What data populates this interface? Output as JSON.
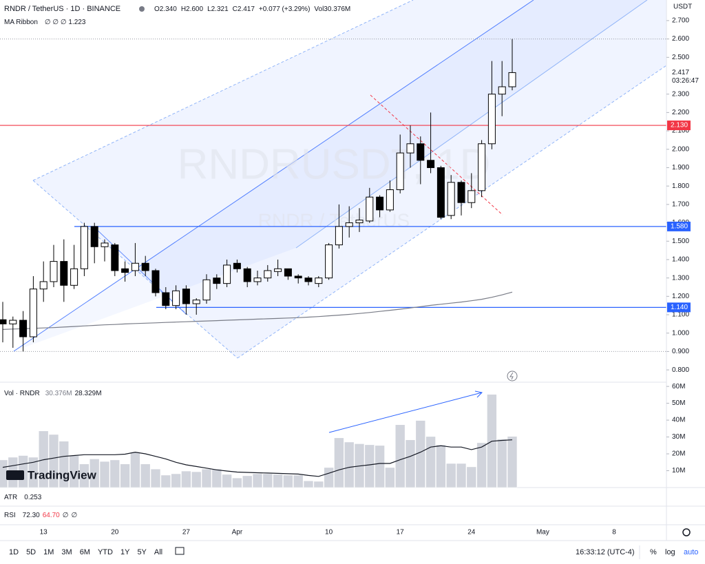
{
  "header": {
    "symbol": "RNDR / TetherUS · 1D · BINANCE",
    "ohlc": [
      "O2.340",
      "H2.600",
      "L2.321",
      "C2.417",
      "+0.077 (+3.29%)",
      "Vol30.376M"
    ],
    "ma_legend": "∅ ∅ ∅ 1.223"
  },
  "watermark": {
    "main": "RNDRUSDT, 1D",
    "sub": "RNDR / TetherUS"
  },
  "currency": "USDT",
  "logo": "TradingView",
  "indicators": {
    "atr": {
      "name": "ATR",
      "value": "0.253"
    },
    "rsi": {
      "name": "RSI",
      "values": [
        "72.30",
        "64.70",
        "∅",
        "∅"
      ]
    }
  },
  "toolbar": {
    "ranges": [
      "1D",
      "5D",
      "1M",
      "3M",
      "6M",
      "YTD",
      "1Y",
      "5Y",
      "All"
    ],
    "clock": "16:33:12 (UTC-4)",
    "options": [
      "%",
      "log",
      "auto"
    ]
  },
  "chart_data": {
    "type": "candlestick",
    "categories": [
      null,
      null,
      null,
      null,
      "13",
      null,
      null,
      null,
      null,
      null,
      null,
      "20",
      null,
      null,
      null,
      null,
      null,
      null,
      "27",
      null,
      null,
      null,
      null,
      "Apr",
      null,
      null,
      null,
      null,
      null,
      null,
      null,
      null,
      "10",
      null,
      null,
      null,
      null,
      null,
      null,
      "17",
      null,
      null,
      null,
      null,
      null,
      null,
      "24",
      null,
      null,
      null,
      null,
      null,
      null,
      "May",
      null,
      null,
      null,
      null,
      null,
      null,
      "8"
    ],
    "open": [
      1.073,
      1.05,
      1.07,
      0.98,
      1.24,
      1.28,
      1.39,
      1.26,
      1.35,
      1.58,
      1.47,
      1.48,
      1.35,
      1.34,
      1.38,
      1.34,
      1.22,
      1.15,
      1.24,
      1.16,
      1.18,
      1.3,
      1.27,
      1.38,
      1.35,
      1.28,
      1.3,
      1.335,
      1.35,
      1.31,
      1.3,
      1.27,
      1.3,
      1.48,
      1.58,
      1.6,
      1.61,
      1.74,
      1.67,
      1.78,
      1.98,
      2.03,
      1.94,
      1.9,
      1.64,
      1.82,
      1.71,
      1.775,
      2.03,
      2.3,
      2.34,
      null,
      null,
      null,
      null,
      null,
      null,
      null,
      null,
      null,
      null
    ],
    "high": [
      1.17,
      1.09,
      1.12,
      1.31,
      1.39,
      1.48,
      1.51,
      1.48,
      1.6,
      1.6,
      1.51,
      1.49,
      1.39,
      1.49,
      1.42,
      1.35,
      1.25,
      1.26,
      1.26,
      1.19,
      1.32,
      1.32,
      1.4,
      1.4,
      1.36,
      1.34,
      1.37,
      1.4,
      1.35,
      1.32,
      1.31,
      1.31,
      1.49,
      1.7,
      1.69,
      1.68,
      1.79,
      1.75,
      1.83,
      2.08,
      2.13,
      2.07,
      2.2,
      1.91,
      1.86,
      1.83,
      1.87,
      2.05,
      2.48,
      2.48,
      2.6,
      null,
      null,
      null,
      null,
      null,
      null,
      null,
      null,
      null,
      null
    ],
    "low": [
      0.95,
      0.92,
      0.9,
      0.95,
      1.17,
      1.25,
      1.17,
      1.24,
      1.31,
      1.38,
      1.39,
      1.31,
      1.28,
      1.31,
      1.31,
      1.2,
      1.13,
      1.13,
      1.1,
      1.1,
      1.16,
      1.24,
      1.25,
      1.33,
      1.25,
      1.26,
      1.28,
      1.31,
      1.29,
      1.27,
      1.26,
      1.25,
      1.29,
      1.46,
      1.52,
      1.55,
      1.6,
      1.63,
      1.66,
      1.76,
      1.9,
      1.81,
      1.87,
      1.62,
      1.62,
      1.64,
      1.68,
      1.74,
      2.0,
      2.18,
      2.321,
      null,
      null,
      null,
      null,
      null,
      null,
      null,
      null,
      null,
      null
    ],
    "close": [
      1.05,
      1.07,
      0.98,
      1.24,
      1.28,
      1.39,
      1.26,
      1.35,
      1.58,
      1.47,
      1.49,
      1.34,
      1.33,
      1.38,
      1.34,
      1.22,
      1.15,
      1.23,
      1.16,
      1.18,
      1.29,
      1.27,
      1.37,
      1.35,
      1.28,
      1.3,
      1.34,
      1.35,
      1.31,
      1.3,
      1.28,
      1.3,
      1.48,
      1.58,
      1.6,
      1.615,
      1.74,
      1.67,
      1.78,
      1.98,
      2.03,
      1.94,
      1.9,
      1.63,
      1.82,
      1.71,
      1.775,
      2.03,
      2.3,
      2.34,
      2.417,
      null,
      null,
      null,
      null,
      null,
      null,
      null,
      null,
      null,
      null
    ],
    "up_color": "#ffffff",
    "down_color": "#000000",
    "wick_color": "#000000",
    "ma": {
      "name": "MA Ribbon",
      "color": "#787b86",
      "values": [
        1.02,
        1.022,
        1.024,
        1.026,
        1.028,
        1.03,
        1.033,
        1.036,
        1.039,
        1.042,
        1.045,
        1.047,
        1.05,
        1.052,
        1.054,
        1.056,
        1.058,
        1.06,
        1.062,
        1.064,
        1.066,
        1.068,
        1.07,
        1.072,
        1.074,
        1.076,
        1.078,
        1.08,
        1.082,
        1.084,
        1.087,
        1.09,
        1.094,
        1.098,
        1.102,
        1.107,
        1.112,
        1.118,
        1.124,
        1.13,
        1.137,
        1.144,
        1.151,
        1.157,
        1.163,
        1.169,
        1.176,
        1.184,
        1.195,
        1.208,
        1.223,
        null,
        null,
        null,
        null,
        null,
        null,
        null,
        null,
        null,
        null
      ]
    },
    "ylim": [
      0.733,
      2.812
    ],
    "yticks": [
      {
        "value": 2.7,
        "label": "2.700"
      },
      {
        "value": 2.6,
        "label": "2.600"
      },
      {
        "value": 2.5,
        "label": "2.500"
      },
      {
        "value": 2.3,
        "label": "2.300"
      },
      {
        "value": 2.2,
        "label": "2.200"
      },
      {
        "value": 2.1,
        "label": "2.100"
      },
      {
        "value": 2.0,
        "label": "2.000"
      },
      {
        "value": 1.9,
        "label": "1.900"
      },
      {
        "value": 1.8,
        "label": "1.800"
      },
      {
        "value": 1.7,
        "label": "1.700"
      },
      {
        "value": 1.6,
        "label": "1.600"
      },
      {
        "value": 1.5,
        "label": "1.500"
      },
      {
        "value": 1.4,
        "label": "1.400"
      },
      {
        "value": 1.3,
        "label": "1.300"
      },
      {
        "value": 1.2,
        "label": "1.200"
      },
      {
        "value": 1.1,
        "label": "1.100"
      },
      {
        "value": 1.0,
        "label": "1.000"
      },
      {
        "value": 0.9,
        "label": "0.900"
      },
      {
        "value": 0.8,
        "label": "0.800"
      }
    ],
    "levels": [
      {
        "value": 2.13,
        "label": "2.130",
        "color": "#f23645"
      },
      {
        "value": 1.58,
        "label": "1.580",
        "color": "#2962ff"
      },
      {
        "value": 1.14,
        "label": "1.140",
        "color": "#2962ff"
      }
    ],
    "range_lines": [
      2.6,
      0.9
    ],
    "last_price": {
      "value": 2.417,
      "label": "2.417",
      "countdown": "03:26:47"
    },
    "volume": {
      "name": "Vol · RNDR",
      "color": "#d1d4dc",
      "value_label": "30.376M",
      "ma_label": "28.329M",
      "ma_color": "#131722",
      "values": [
        16.4,
        18,
        19,
        18,
        33.6,
        31.5,
        27.5,
        19,
        14,
        17,
        15.5,
        16.4,
        14,
        21,
        14,
        11,
        7.4,
        8.2,
        9.8,
        9.4,
        11,
        11,
        7.8,
        5.7,
        7,
        8.2,
        8.2,
        7.8,
        7.4,
        7.4,
        4,
        3.7,
        11.9,
        29.5,
        27,
        26,
        25.4,
        25,
        11.9,
        37.3,
        28.3,
        39.8,
        30.3,
        25.4,
        14.3,
        14.3,
        12.3,
        26.6,
        55.3,
        28.7,
        30.376,
        null,
        null,
        null,
        null,
        null,
        null,
        null,
        null,
        null,
        null
      ],
      "ma_values": [
        12,
        13,
        14,
        15,
        16.5,
        17.5,
        18.5,
        19,
        19.5,
        19.5,
        19.5,
        19.5,
        19.8,
        21,
        20,
        18.5,
        17,
        15,
        13.5,
        12.5,
        11.5,
        10.5,
        9.8,
        9.2,
        9,
        8.8,
        8.6,
        8.4,
        8.2,
        8,
        7.2,
        6.6,
        8.5,
        10.5,
        12,
        12.8,
        13.5,
        14.3,
        14.3,
        16.5,
        18.5,
        21,
        24,
        24.8,
        24,
        24,
        22.5,
        24,
        27.5,
        28,
        28.329,
        null,
        null,
        null,
        null,
        null,
        null,
        null,
        null,
        null,
        null
      ],
      "ylim": [
        0,
        62.5
      ],
      "yticks": [
        {
          "value": 60,
          "label": "60M"
        },
        {
          "value": 50,
          "label": "50M"
        },
        {
          "value": 40,
          "label": "40M"
        },
        {
          "value": 30,
          "label": "30M"
        },
        {
          "value": 20,
          "label": "20M"
        },
        {
          "value": 10,
          "label": "10M"
        }
      ]
    }
  }
}
